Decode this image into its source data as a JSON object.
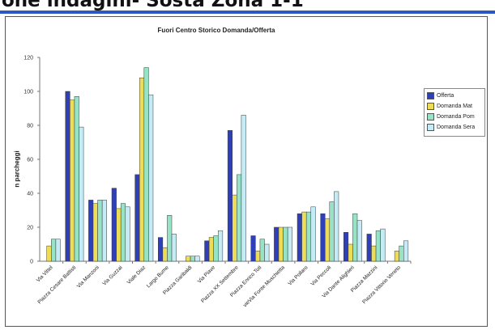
{
  "heading": "one indagini- Sosta Zona 1-1",
  "colors": {
    "accent_rule": "#2c58c6",
    "series": [
      "#2e3fb7",
      "#eddc58",
      "#97e3c6",
      "#c5ebf6"
    ]
  },
  "chart_data": {
    "type": "bar",
    "title": "Fuori Centro Storico Domanda/Offerta",
    "xlabel": "",
    "ylabel": "n parcheggi",
    "ylim": [
      0,
      120
    ],
    "yticks": [
      0,
      20,
      40,
      60,
      80,
      100,
      120
    ],
    "grid": false,
    "legend_position": "right",
    "categories": [
      "Via Vittel",
      "Piazza Cesare Battisti",
      "Via Manzoni",
      "Via Guzzai",
      "Viale Diaz",
      "Largo Bume",
      "Piazza Garibaldi",
      "Via Piave",
      "Piazza XX Settembre",
      "Piazza Enrico Toti",
      "vieVia Fonte Muschietta",
      "Via Pollaro",
      "Via Peccoli",
      "Via Dante Alighieri",
      "Piazza Mazzini",
      "Piazza Vittorio Veneto"
    ],
    "series": [
      {
        "name": "Offerta",
        "values": [
          0,
          100,
          36,
          43,
          51,
          14,
          0,
          12,
          77,
          15,
          20,
          28,
          28,
          17,
          16,
          0
        ]
      },
      {
        "name": "Domanda Mat",
        "values": [
          9,
          95,
          34,
          31,
          108,
          8,
          3,
          14,
          39,
          6,
          20,
          29,
          25,
          10,
          9,
          6
        ]
      },
      {
        "name": "Domanda Pom",
        "values": [
          13,
          97,
          36,
          34,
          114,
          27,
          3,
          15,
          51,
          13,
          20,
          29,
          35,
          28,
          18,
          9
        ]
      },
      {
        "name": "Domanda Serale",
        "values": [
          13,
          79,
          36,
          32,
          98,
          16,
          3,
          18,
          86,
          10,
          20,
          32,
          41,
          24,
          19,
          12
        ]
      }
    ]
  },
  "legend": {
    "entries": [
      "Offerta",
      "Domanda Mat",
      "Domanda Pom",
      "Domanda Sera"
    ]
  }
}
